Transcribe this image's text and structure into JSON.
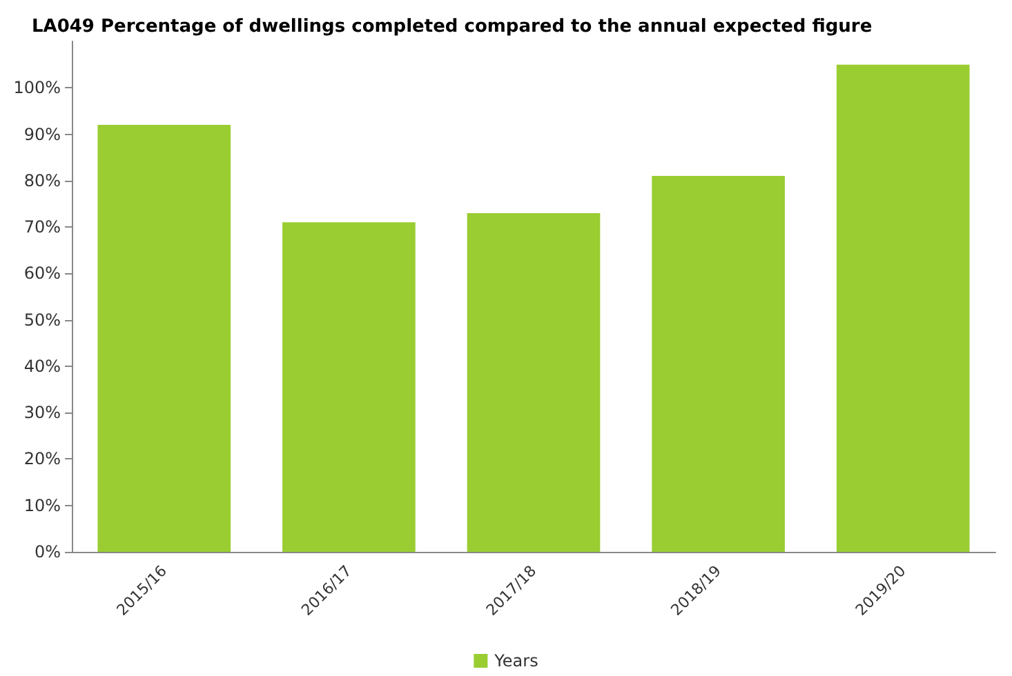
{
  "chart_data": {
    "type": "bar",
    "title": "LA049 Percentage of dwellings completed compared to the annual expected figure",
    "categories": [
      "2015/16",
      "2016/17",
      "2017/18",
      "2018/19",
      "2019/20"
    ],
    "series": [
      {
        "name": "Years",
        "color": "#9acd32",
        "values": [
          92,
          71,
          73,
          81,
          105
        ]
      }
    ],
    "ylim": [
      0,
      110
    ],
    "yticks": [
      {
        "value": 0,
        "label": "0%"
      },
      {
        "value": 10,
        "label": "10%"
      },
      {
        "value": 20,
        "label": "20%"
      },
      {
        "value": 30,
        "label": "30%"
      },
      {
        "value": 40,
        "label": "40%"
      },
      {
        "value": 50,
        "label": "50%"
      },
      {
        "value": 60,
        "label": "60%"
      },
      {
        "value": 70,
        "label": "70%"
      },
      {
        "value": 80,
        "label": "80%"
      },
      {
        "value": 90,
        "label": "90%"
      },
      {
        "value": 100,
        "label": "100%"
      }
    ],
    "grid": false,
    "legend": "bottom"
  }
}
